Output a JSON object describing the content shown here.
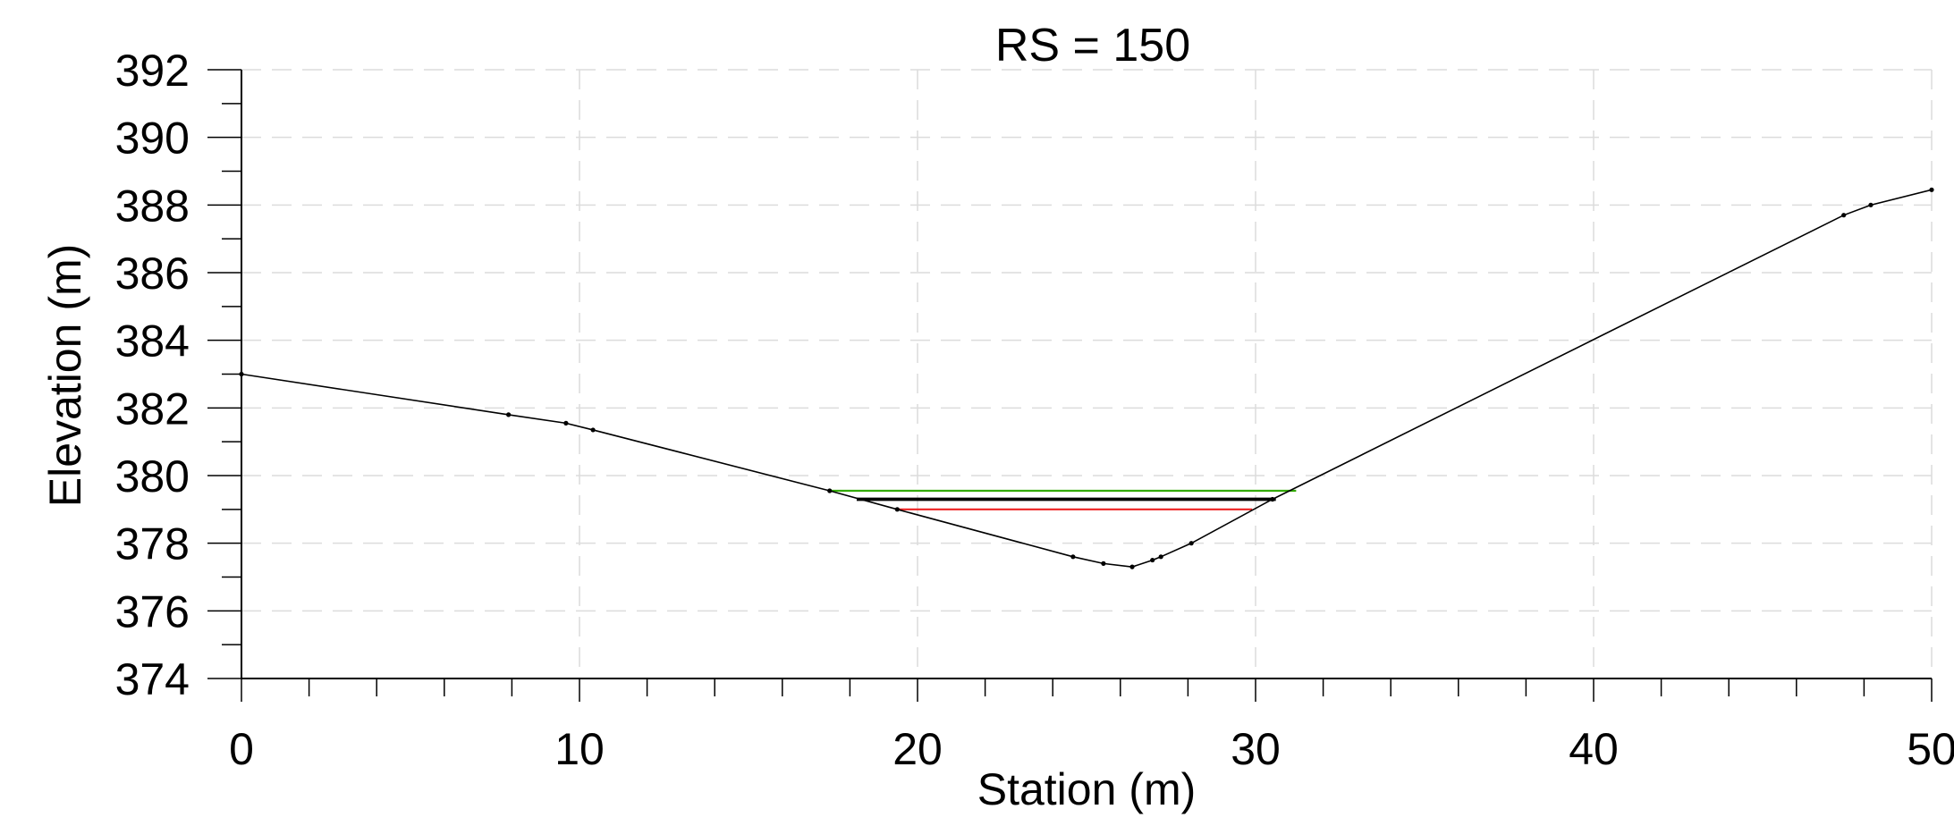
{
  "chart_data": {
    "type": "line",
    "title": "RS = 150",
    "xlabel": "Station (m)",
    "ylabel": "Elevation (m)",
    "xlim": [
      0,
      50
    ],
    "ylim": [
      374,
      392
    ],
    "x_ticks_major": [
      0,
      10,
      20,
      30,
      40,
      50
    ],
    "x_tick_labels": [
      "0",
      "10",
      "20",
      "30",
      "40",
      "50"
    ],
    "x_minor_step": 2,
    "y_ticks_major": [
      374,
      376,
      378,
      380,
      382,
      384,
      386,
      388,
      390,
      392
    ],
    "y_tick_labels": [
      "374",
      "376",
      "378",
      "380",
      "382",
      "384",
      "386",
      "388",
      "390",
      "392"
    ],
    "y_minor_step": 1,
    "grid": true,
    "ground": {
      "x": [
        0,
        7.9,
        9.6,
        10.4,
        17.4,
        19.4,
        24.6,
        25.5,
        26.35,
        26.95,
        27.2,
        28.1,
        30.5,
        47.4,
        48.2,
        50
      ],
      "y": [
        383.0,
        381.8,
        381.55,
        381.35,
        379.55,
        379.0,
        377.6,
        377.4,
        377.3,
        377.5,
        377.6,
        378.0,
        379.3,
        387.7,
        388.0,
        388.45
      ]
    },
    "water_surfaces": [
      {
        "color": "#33aa00",
        "x": [
          17.4,
          31.2
        ],
        "y": [
          379.55,
          379.55
        ],
        "width": 2.2
      },
      {
        "color": "#000000",
        "x": [
          18.2,
          30.6
        ],
        "y": [
          379.3,
          379.3
        ],
        "width": 3.8
      },
      {
        "color": "#ee2222",
        "x": [
          19.4,
          29.9
        ],
        "y": [
          379.0,
          379.0
        ],
        "width": 2.2
      }
    ]
  }
}
